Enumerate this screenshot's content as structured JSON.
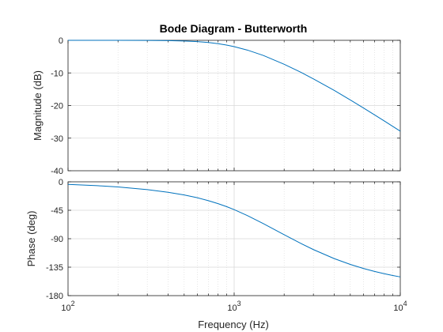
{
  "chart_data": {
    "type": "line",
    "title": "Bode Diagram - Butterworth",
    "xlabel": "Frequency  (Hz)",
    "xscale": "log",
    "xlim": [
      100,
      10000
    ],
    "x_ticks": [
      100,
      1000,
      10000
    ],
    "x_tick_labels": [
      {
        "base": "10",
        "exp": "2"
      },
      {
        "base": "10",
        "exp": "3"
      },
      {
        "base": "10",
        "exp": "4"
      }
    ],
    "grid": true,
    "line_color": "#0072BD",
    "panels": [
      {
        "name": "magnitude",
        "ylabel": "Magnitude (dB)",
        "ylim": [
          -40,
          0
        ],
        "y_ticks": [
          0,
          -10,
          -20,
          -30,
          -40
        ],
        "y_tick_labels": [
          "0",
          "-10",
          "-20",
          "-30",
          "-40"
        ],
        "series": [
          {
            "x": [
              100,
              150,
              200,
              300,
              400,
              500,
              600,
              700,
              800,
              900,
              1000,
              1200,
              1500,
              2000,
              2500,
              3000,
              4000,
              5000,
              6000,
              7000,
              8000,
              9000,
              10000
            ],
            "values": [
              0.0,
              0.0,
              -0.01,
              -0.03,
              -0.09,
              -0.21,
              -0.4,
              -0.67,
              -1.02,
              -1.45,
              -1.94,
              -2.99,
              -4.65,
              -7.34,
              -9.72,
              -11.82,
              -15.35,
              -18.28,
              -20.74,
              -22.86,
              -24.72,
              -26.38,
              -27.86
            ]
          }
        ]
      },
      {
        "name": "phase",
        "ylabel": "Phase (deg)",
        "ylim": [
          -180,
          0
        ],
        "y_ticks": [
          0,
          -45,
          -90,
          -135,
          -180
        ],
        "y_tick_labels": [
          "0",
          "-45",
          "-90",
          "-135",
          "-180"
        ],
        "series": [
          {
            "x": [
              100,
              150,
              200,
              300,
              400,
              500,
              600,
              700,
              800,
              900,
              1000,
              1200,
              1500,
              2000,
              2500,
              3000,
              4000,
              5000,
              6000,
              7000,
              8000,
              9000,
              10000
            ],
            "values": [
              -4.1,
              -6.1,
              -8.2,
              -12.3,
              -16.5,
              -20.8,
              -25.2,
              -29.8,
              -34.5,
              -39.2,
              -44.0,
              -53.4,
              -66.2,
              -83.6,
              -97.0,
              -107.2,
              -121.4,
              -130.6,
              -137.0,
              -141.7,
              -145.3,
              -148.1,
              -150.4
            ]
          }
        ]
      }
    ]
  }
}
